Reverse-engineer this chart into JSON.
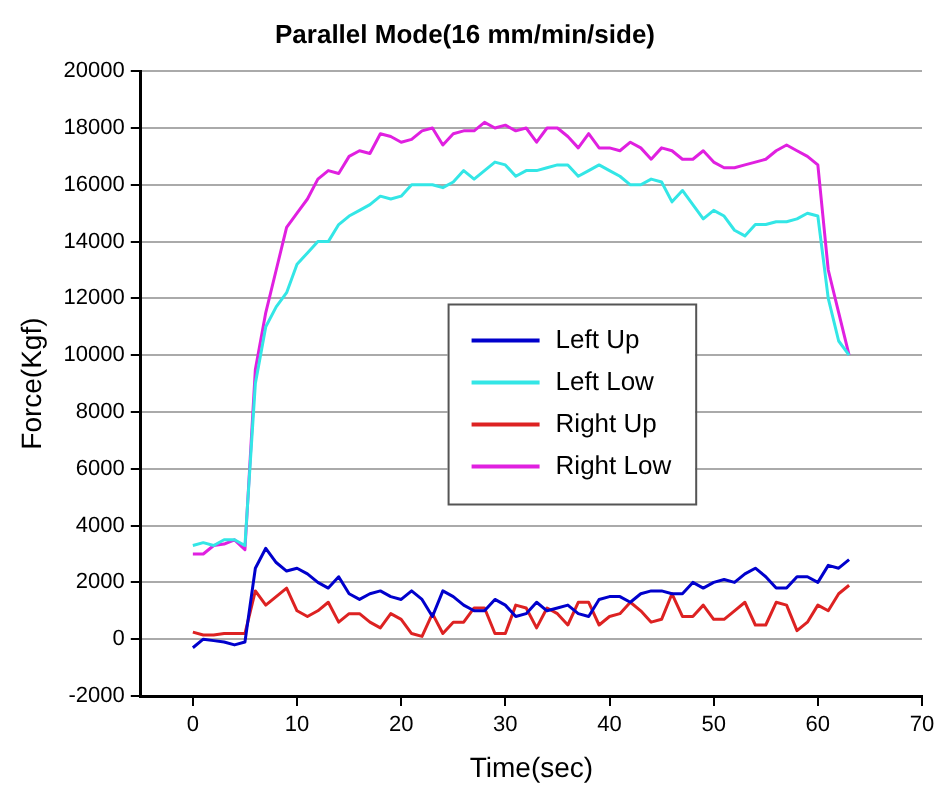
{
  "chart_data": {
    "type": "line",
    "title": "Parallel Mode(16 mm/min/side)",
    "xlabel": "Time(sec)",
    "ylabel": "Force(Kgf)",
    "x": [
      0,
      1,
      2,
      3,
      4,
      5,
      6,
      7,
      8,
      9,
      10,
      11,
      12,
      13,
      14,
      15,
      16,
      17,
      18,
      19,
      20,
      21,
      22,
      23,
      24,
      25,
      26,
      27,
      28,
      29,
      30,
      31,
      32,
      33,
      34,
      35,
      36,
      37,
      38,
      39,
      40,
      41,
      42,
      43,
      44,
      45,
      46,
      47,
      48,
      49,
      50,
      51,
      52,
      53,
      54,
      55,
      56,
      57,
      58,
      59,
      60,
      61,
      62,
      63
    ],
    "series": [
      {
        "name": "Left Up",
        "color": "#0000cc",
        "values": [
          -300,
          0,
          -50,
          -100,
          -200,
          -100,
          2500,
          3200,
          2700,
          2400,
          2500,
          2300,
          2000,
          1800,
          2200,
          1600,
          1400,
          1600,
          1700,
          1500,
          1400,
          1700,
          1400,
          800,
          1700,
          1500,
          1200,
          1000,
          1000,
          1400,
          1200,
          800,
          900,
          1300,
          1000,
          1100,
          1200,
          900,
          800,
          1400,
          1500,
          1500,
          1300,
          1600,
          1700,
          1700,
          1600,
          1600,
          2000,
          1800,
          2000,
          2100,
          2000,
          2300,
          2500,
          2200,
          1800,
          1800,
          2200,
          2200,
          2000,
          2600,
          2500,
          2800
        ]
      },
      {
        "name": "Left Low",
        "color": "#33e6e6",
        "values": [
          3300,
          3400,
          3300,
          3500,
          3500,
          3300,
          9000,
          11000,
          11700,
          12200,
          13200,
          13600,
          14000,
          14000,
          14600,
          14900,
          15100,
          15300,
          15600,
          15500,
          15600,
          16000,
          16000,
          16000,
          15900,
          16100,
          16500,
          16200,
          16500,
          16800,
          16700,
          16300,
          16500,
          16500,
          16600,
          16700,
          16700,
          16300,
          16500,
          16700,
          16500,
          16300,
          16000,
          16000,
          16200,
          16100,
          15400,
          15800,
          15300,
          14800,
          15100,
          14900,
          14400,
          14200,
          14600,
          14600,
          14700,
          14700,
          14800,
          15000,
          14900,
          12000,
          10500,
          10000
        ]
      },
      {
        "name": "Right Up",
        "color": "#dd2222",
        "values": [
          250,
          150,
          150,
          200,
          200,
          200,
          1700,
          1200,
          1500,
          1800,
          1000,
          800,
          1000,
          1300,
          600,
          900,
          900,
          600,
          400,
          900,
          700,
          200,
          100,
          900,
          200,
          600,
          600,
          1100,
          1100,
          200,
          200,
          1200,
          1100,
          400,
          1100,
          900,
          500,
          1300,
          1300,
          500,
          800,
          900,
          1300,
          1000,
          600,
          700,
          1600,
          800,
          800,
          1200,
          700,
          700,
          1000,
          1300,
          500,
          500,
          1300,
          1200,
          300,
          600,
          1200,
          1000,
          1600,
          1900
        ]
      },
      {
        "name": "Right Low",
        "color": "#e020e0",
        "values": [
          3000,
          3000,
          3300,
          3350,
          3500,
          3150,
          9500,
          11500,
          13000,
          14500,
          15000,
          15500,
          16200,
          16500,
          16400,
          17000,
          17200,
          17100,
          17800,
          17700,
          17500,
          17600,
          17900,
          18000,
          17400,
          17800,
          17900,
          17900,
          18200,
          18000,
          18100,
          17900,
          18000,
          17500,
          18000,
          18000,
          17700,
          17300,
          17800,
          17300,
          17300,
          17200,
          17500,
          17300,
          16900,
          17300,
          17200,
          16900,
          16900,
          17200,
          16800,
          16600,
          16600,
          16700,
          16800,
          16900,
          17200,
          17400,
          17200,
          17000,
          16700,
          13000,
          11500,
          10000
        ]
      }
    ],
    "xlim": [
      -5,
      70
    ],
    "xticks": [
      0,
      10,
      20,
      30,
      40,
      50,
      60,
      70
    ],
    "ylim": [
      -2000,
      20000
    ],
    "yticks": [
      -2000,
      0,
      2000,
      4000,
      6000,
      8000,
      10000,
      12000,
      14000,
      16000,
      18000,
      20000
    ],
    "grid": "y",
    "legend": "center",
    "marker": "none",
    "line_style": "solid"
  }
}
